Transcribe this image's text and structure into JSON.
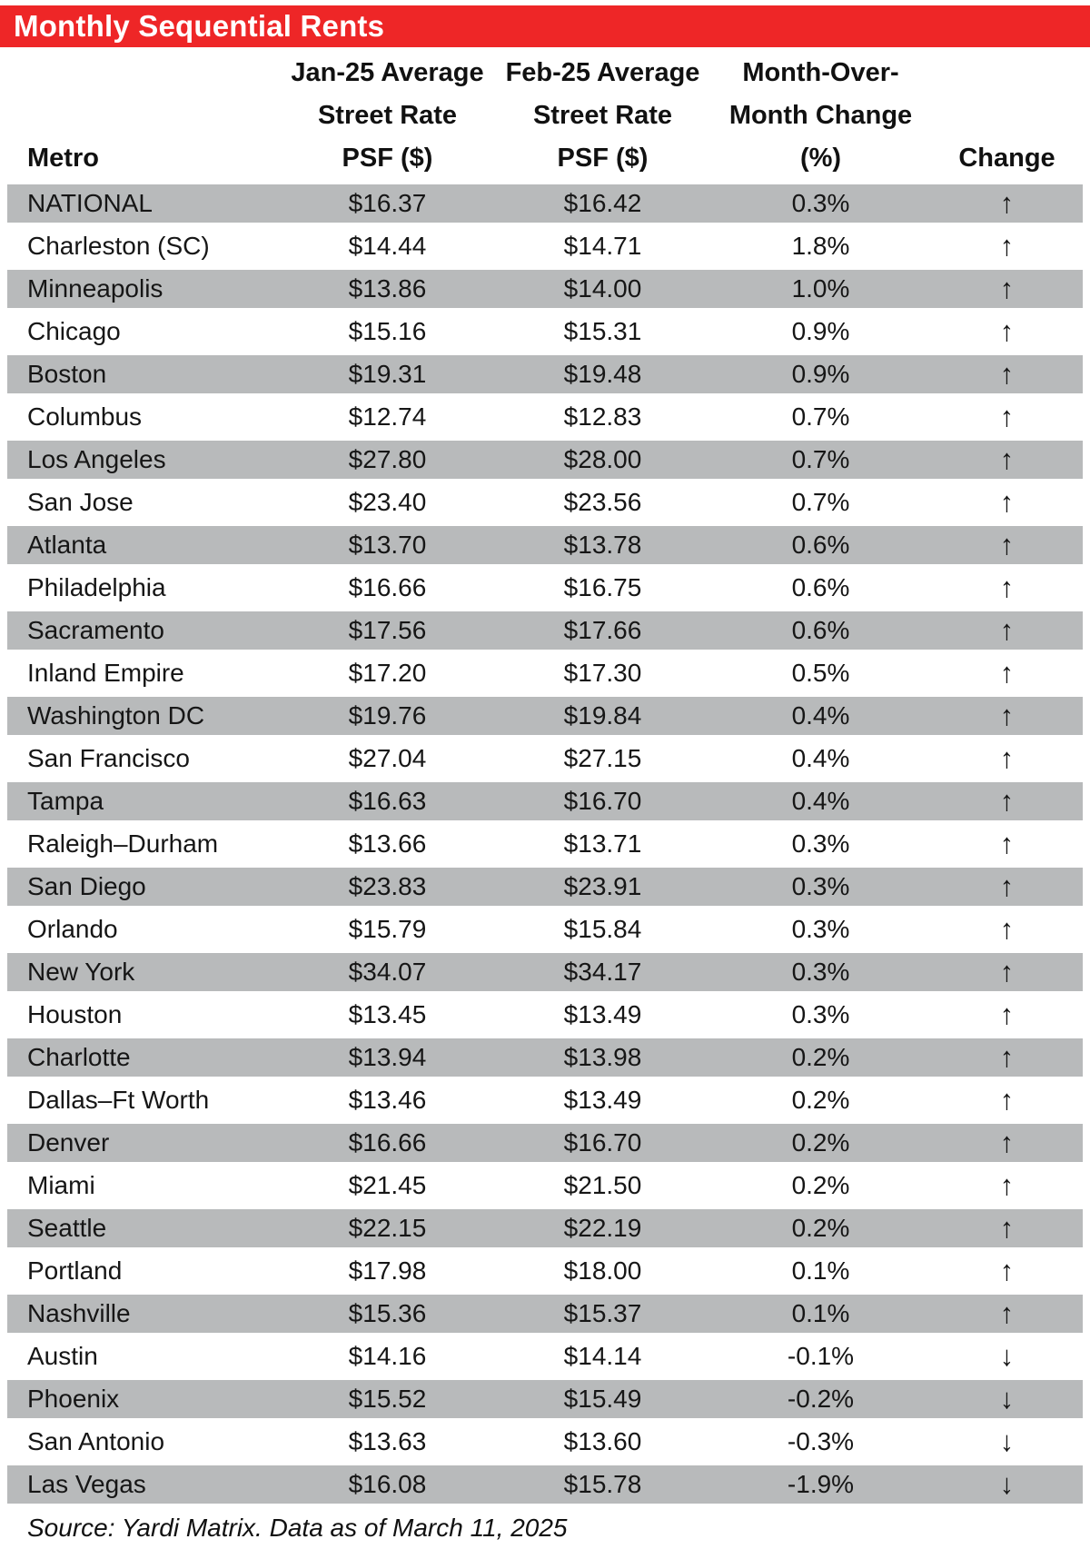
{
  "page_title_bar": {
    "label": "Monthly Sequential Rents",
    "background_color": "#EE2627",
    "text_color": "#FFFFFF"
  },
  "colors": {
    "row_stripe_gray": "#B8BABB",
    "row_stripe_white": "#FFFFFF",
    "text": "#111111"
  },
  "glyphs": {
    "up": "↑",
    "down": "↓"
  },
  "chart_data": {
    "type": "table",
    "title": "Monthly Sequential Rents",
    "source_note": "Source: Yardi Matrix. Data as of March 11, 2025",
    "columns": [
      {
        "id": "metro",
        "lines": [
          "Metro"
        ]
      },
      {
        "id": "jan",
        "lines": [
          "Jan-25 Average",
          "Street Rate",
          "PSF ($)"
        ]
      },
      {
        "id": "feb",
        "lines": [
          "Feb-25 Average",
          "Street Rate",
          "PSF ($)"
        ]
      },
      {
        "id": "mom",
        "lines": [
          "Month-Over-",
          "Month Change",
          "(%)"
        ]
      },
      {
        "id": "change",
        "lines": [
          "Change"
        ]
      }
    ],
    "rows": [
      {
        "metro": "NATIONAL",
        "jan_psf": 16.37,
        "feb_psf": 16.42,
        "mom_pct": 0.3,
        "direction": "up"
      },
      {
        "metro": "Charleston (SC)",
        "jan_psf": 14.44,
        "feb_psf": 14.71,
        "mom_pct": 1.8,
        "direction": "up"
      },
      {
        "metro": "Minneapolis",
        "jan_psf": 13.86,
        "feb_psf": 14.0,
        "mom_pct": 1.0,
        "direction": "up"
      },
      {
        "metro": "Chicago",
        "jan_psf": 15.16,
        "feb_psf": 15.31,
        "mom_pct": 0.9,
        "direction": "up"
      },
      {
        "metro": "Boston",
        "jan_psf": 19.31,
        "feb_psf": 19.48,
        "mom_pct": 0.9,
        "direction": "up"
      },
      {
        "metro": "Columbus",
        "jan_psf": 12.74,
        "feb_psf": 12.83,
        "mom_pct": 0.7,
        "direction": "up"
      },
      {
        "metro": "Los Angeles",
        "jan_psf": 27.8,
        "feb_psf": 28.0,
        "mom_pct": 0.7,
        "direction": "up"
      },
      {
        "metro": "San Jose",
        "jan_psf": 23.4,
        "feb_psf": 23.56,
        "mom_pct": 0.7,
        "direction": "up"
      },
      {
        "metro": "Atlanta",
        "jan_psf": 13.7,
        "feb_psf": 13.78,
        "mom_pct": 0.6,
        "direction": "up"
      },
      {
        "metro": "Philadelphia",
        "jan_psf": 16.66,
        "feb_psf": 16.75,
        "mom_pct": 0.6,
        "direction": "up"
      },
      {
        "metro": "Sacramento",
        "jan_psf": 17.56,
        "feb_psf": 17.66,
        "mom_pct": 0.6,
        "direction": "up"
      },
      {
        "metro": "Inland Empire",
        "jan_psf": 17.2,
        "feb_psf": 17.3,
        "mom_pct": 0.5,
        "direction": "up"
      },
      {
        "metro": "Washington DC",
        "jan_psf": 19.76,
        "feb_psf": 19.84,
        "mom_pct": 0.4,
        "direction": "up"
      },
      {
        "metro": "San Francisco",
        "jan_psf": 27.04,
        "feb_psf": 27.15,
        "mom_pct": 0.4,
        "direction": "up"
      },
      {
        "metro": "Tampa",
        "jan_psf": 16.63,
        "feb_psf": 16.7,
        "mom_pct": 0.4,
        "direction": "up"
      },
      {
        "metro": "Raleigh–Durham",
        "jan_psf": 13.66,
        "feb_psf": 13.71,
        "mom_pct": 0.3,
        "direction": "up"
      },
      {
        "metro": "San Diego",
        "jan_psf": 23.83,
        "feb_psf": 23.91,
        "mom_pct": 0.3,
        "direction": "up"
      },
      {
        "metro": "Orlando",
        "jan_psf": 15.79,
        "feb_psf": 15.84,
        "mom_pct": 0.3,
        "direction": "up"
      },
      {
        "metro": "New York",
        "jan_psf": 34.07,
        "feb_psf": 34.17,
        "mom_pct": 0.3,
        "direction": "up"
      },
      {
        "metro": "Houston",
        "jan_psf": 13.45,
        "feb_psf": 13.49,
        "mom_pct": 0.3,
        "direction": "up"
      },
      {
        "metro": "Charlotte",
        "jan_psf": 13.94,
        "feb_psf": 13.98,
        "mom_pct": 0.2,
        "direction": "up"
      },
      {
        "metro": "Dallas–Ft Worth",
        "jan_psf": 13.46,
        "feb_psf": 13.49,
        "mom_pct": 0.2,
        "direction": "up"
      },
      {
        "metro": "Denver",
        "jan_psf": 16.66,
        "feb_psf": 16.7,
        "mom_pct": 0.2,
        "direction": "up"
      },
      {
        "metro": "Miami",
        "jan_psf": 21.45,
        "feb_psf": 21.5,
        "mom_pct": 0.2,
        "direction": "up"
      },
      {
        "metro": "Seattle",
        "jan_psf": 22.15,
        "feb_psf": 22.19,
        "mom_pct": 0.2,
        "direction": "up"
      },
      {
        "metro": "Portland",
        "jan_psf": 17.98,
        "feb_psf": 18.0,
        "mom_pct": 0.1,
        "direction": "up"
      },
      {
        "metro": "Nashville",
        "jan_psf": 15.36,
        "feb_psf": 15.37,
        "mom_pct": 0.1,
        "direction": "up"
      },
      {
        "metro": "Austin",
        "jan_psf": 14.16,
        "feb_psf": 14.14,
        "mom_pct": -0.1,
        "direction": "down"
      },
      {
        "metro": "Phoenix",
        "jan_psf": 15.52,
        "feb_psf": 15.49,
        "mom_pct": -0.2,
        "direction": "down"
      },
      {
        "metro": "San Antonio",
        "jan_psf": 13.63,
        "feb_psf": 13.6,
        "mom_pct": -0.3,
        "direction": "down"
      },
      {
        "metro": "Las Vegas",
        "jan_psf": 16.08,
        "feb_psf": 15.78,
        "mom_pct": -1.9,
        "direction": "down"
      }
    ]
  }
}
